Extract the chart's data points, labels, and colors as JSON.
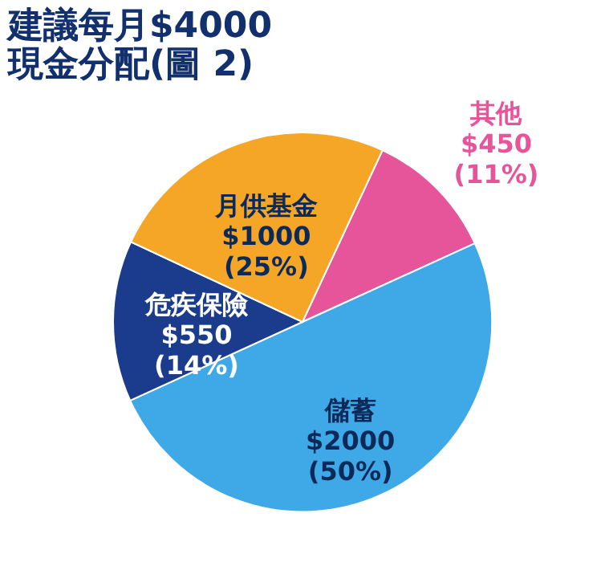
{
  "chart_data": {
    "type": "pie",
    "title": [
      "建議每月$4000",
      "現金分配(圖 2)"
    ],
    "categories": [
      "其他",
      "儲蓄",
      "危疾保險",
      "月供基金"
    ],
    "values": [
      450,
      2000,
      550,
      1000
    ],
    "colors": [
      "#e6549a",
      "#3ea9e6",
      "#1b3c8c",
      "#f5a626"
    ],
    "value_labels": [
      "$450 (11%)",
      "$2000 (50%)",
      "$550 (14%)",
      "$1000 (25%)"
    ],
    "legend": false
  }
}
